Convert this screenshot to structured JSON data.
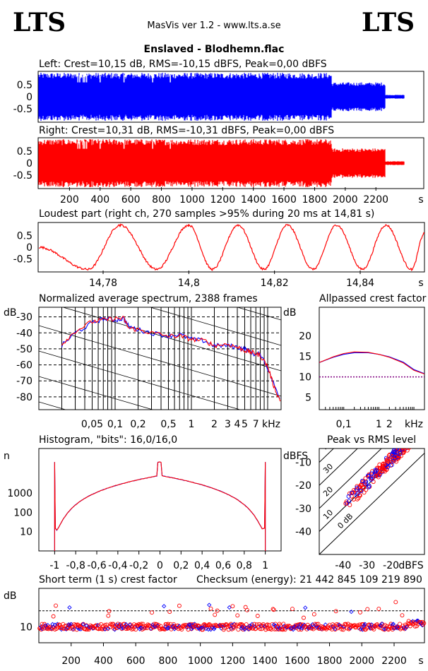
{
  "header": {
    "logo_left": "LTS",
    "logo_right": "LTS",
    "app_title": "MasVis ver 1.2 - www.lts.a.se",
    "file_title": "Enslaved - Blodhemn.flac"
  },
  "colors": {
    "left": "#0000ff",
    "right": "#ff0000",
    "grid": "#000000"
  },
  "chart_data": [
    {
      "id": "left-waveform",
      "type": "area",
      "title": "Left: Crest=10,15 dB, RMS=-10,15 dBFS, Peak=0,00 dBFS",
      "yticks": [
        "0.5",
        "0",
        "-0.5"
      ],
      "ylim": [
        -1,
        1
      ],
      "xlim": [
        0,
        2388
      ],
      "segments": [
        {
          "x0": 0,
          "x1": 1910,
          "amp": 1.0
        },
        {
          "x0": 1910,
          "x1": 2260,
          "amp": 0.6
        },
        {
          "x0": 2260,
          "x1": 2388,
          "amp": 0.08
        }
      ]
    },
    {
      "id": "right-waveform",
      "type": "area",
      "title": "Right: Crest=10,31 dB, RMS=-10,31 dBFS, Peak=0,00 dBFS",
      "yticks": [
        "0.5",
        "0",
        "-0.5"
      ],
      "ylim": [
        -1,
        1
      ],
      "xlim": [
        0,
        2388
      ],
      "xticks": [
        "200",
        "400",
        "600",
        "800",
        "1000",
        "1200",
        "1400",
        "1600",
        "1800",
        "2000",
        "2200",
        "s"
      ],
      "segments": [
        {
          "x0": 0,
          "x1": 1910,
          "amp": 1.0
        },
        {
          "x0": 1910,
          "x1": 2260,
          "amp": 0.62
        },
        {
          "x0": 2260,
          "x1": 2388,
          "amp": 0.08
        }
      ]
    },
    {
      "id": "loudest-part",
      "type": "line",
      "title": "Loudest part (right ch, 270 samples >95% during 20 ms at 14,81 s)",
      "yticks": [
        "0.5",
        "0",
        "-0.5"
      ],
      "ylim": [
        -1,
        1
      ],
      "xlim": [
        14.765,
        14.855
      ],
      "xticks": [
        "14,78",
        "14,8",
        "14,82",
        "14,84",
        "s"
      ],
      "peaks_x": [
        14.784,
        14.8,
        14.8115,
        14.823,
        14.8345,
        14.846
      ],
      "troughs_x": [
        14.7765,
        14.7925,
        14.8055,
        14.8175,
        14.829,
        14.8405,
        14.852
      ]
    },
    {
      "id": "average-spectrum",
      "type": "line",
      "title": "Normalized average spectrum, 2388 frames",
      "ylabel": "dB",
      "xlabel": "kHz",
      "ylim": [
        -88,
        -24
      ],
      "yticks": [
        "-30",
        "-40",
        "-50",
        "-60",
        "-70",
        "-80"
      ],
      "xticks": [
        "0,05",
        "0,1",
        "0,2",
        "0,5",
        "1",
        "2",
        "3",
        "4",
        "5",
        "7",
        "kHz"
      ],
      "freq_khz": [
        0.02,
        0.03,
        0.05,
        0.07,
        0.1,
        0.13,
        0.15,
        0.2,
        0.3,
        0.5,
        0.7,
        1,
        1.5,
        2,
        3,
        4,
        5,
        6,
        7,
        8,
        10,
        12,
        15
      ],
      "series": [
        {
          "color": "#0000ff",
          "values": [
            -48,
            -40,
            -34,
            -31,
            -32,
            -31,
            -36,
            -38,
            -40,
            -42,
            -41,
            -44,
            -45,
            -48,
            -48,
            -49,
            -50,
            -52,
            -54,
            -53,
            -62,
            -72,
            -82
          ]
        },
        {
          "color": "#ff0000",
          "values": [
            -47,
            -39,
            -33,
            -32,
            -31,
            -31,
            -37,
            -38,
            -40,
            -42,
            -42,
            -44,
            -45,
            -48,
            -47,
            -49,
            -51,
            -52,
            -53,
            -54,
            -61,
            -73,
            -84
          ]
        }
      ]
    },
    {
      "id": "allpassed-crest",
      "type": "line",
      "title": "Allpassed crest factor",
      "ylabel": "dB",
      "xlabel": "kHz",
      "ylim": [
        2,
        27
      ],
      "yticks": [
        "20",
        "15",
        "10",
        "5"
      ],
      "xticks": [
        "0,1",
        "1",
        "2",
        "kHz"
      ],
      "reference": 10,
      "freq_khz": [
        0.02,
        0.05,
        0.1,
        0.2,
        0.5,
        1,
        2,
        5,
        10,
        20
      ],
      "series": [
        {
          "color": "#0000ff",
          "values": [
            13.5,
            14.8,
            15.5,
            15.9,
            15.9,
            15.5,
            14.9,
            13.6,
            11.8,
            10.8
          ]
        },
        {
          "color": "#ff0000",
          "values": [
            13.5,
            14.9,
            15.7,
            16.1,
            16.0,
            15.5,
            14.8,
            13.4,
            11.6,
            10.7
          ]
        }
      ]
    },
    {
      "id": "histogram",
      "type": "line",
      "title": "Histogram, \"bits\": 16,0/16,0",
      "ylabel": "n",
      "ylog": true,
      "ylim": [
        1,
        200000
      ],
      "yticks": [
        "1000",
        "100",
        "10"
      ],
      "xticks": [
        "-1",
        "-0,8",
        "-0,6",
        "-0,4",
        "-0,2",
        "0",
        "0,2",
        "0,4",
        "0,6",
        "0,8",
        "1"
      ],
      "edge_count": 40000,
      "center_count": 8000,
      "near_edge_count": 15
    },
    {
      "id": "peak-vs-rms",
      "type": "scatter",
      "title": "Peak vs RMS level",
      "ylabel": "dBFS",
      "xlabel": "dBFS",
      "xlim": [
        -50,
        -6
      ],
      "ylim": [
        -50,
        -4
      ],
      "yticks": [
        "-10",
        "-20",
        "-30",
        "-40"
      ],
      "xticks": [
        "-40",
        "-30",
        "-20",
        "dBFS"
      ],
      "diagonal_labels": [
        "40",
        "30",
        "20",
        "10",
        "0 dB"
      ]
    },
    {
      "id": "short-term-crest",
      "type": "scatter",
      "title": "Short term (1 s) crest factor",
      "ylabel": "dB",
      "yticks": [
        "10"
      ],
      "ylim": [
        5,
        22
      ],
      "xlim": [
        0,
        2388
      ],
      "xticks": [
        "200",
        "400",
        "600",
        "800",
        "1000",
        "1200",
        "1400",
        "1600",
        "1800",
        "2000",
        "2200",
        "s"
      ],
      "reference": 15
    }
  ],
  "checksum": "Checksum (energy):  21 442 845 109 219 890"
}
